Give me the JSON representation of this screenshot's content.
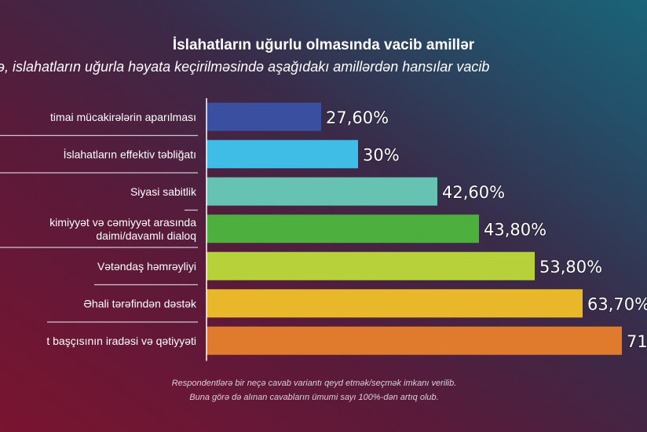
{
  "chart_data": {
    "type": "bar",
    "orientation": "horizontal",
    "title": "İslahatların uğurlu olmasında vacib amillər",
    "subtitle": "ə, islahatların uğurla həyata keçirilməsində aşağıdakı amillərdən hansılar vacib",
    "categories": [
      [
        "timai mücakirələrin aparılması"
      ],
      [
        "İslahatların effektiv təbliğatı"
      ],
      [
        "Siyasi sabitlik"
      ],
      [
        "kimiyyət və cəmiyyət arasında",
        "daimi/davamlı dialoq"
      ],
      [
        "Vətəndaş həmrəyliyi"
      ],
      [
        "Əhali tərəfindən dəstək"
      ],
      [
        "t başçısının iradəsi və qətiyyəti"
      ]
    ],
    "values": [
      27.6,
      30,
      42.6,
      43.8,
      53.8,
      63.7,
      71
    ],
    "data_labels": [
      "27,60%",
      "30%",
      "42,60%",
      "43,80%",
      "53,80%",
      "63,70%",
      "71"
    ],
    "colors": [
      "#3a4fa0",
      "#3fbde6",
      "#66c2b2",
      "#4caf3e",
      "#b6d13a",
      "#e8b82a",
      "#e07a2c"
    ],
    "grid": false,
    "legend": "none"
  },
  "footnote": [
    "Respondentlərə bir neçə cavab variantı qeyd etmək/seçmək imkanı verilib.",
    "Buna görə də alınan cavabların ümumi sayı 100%-dən artıq olub."
  ]
}
